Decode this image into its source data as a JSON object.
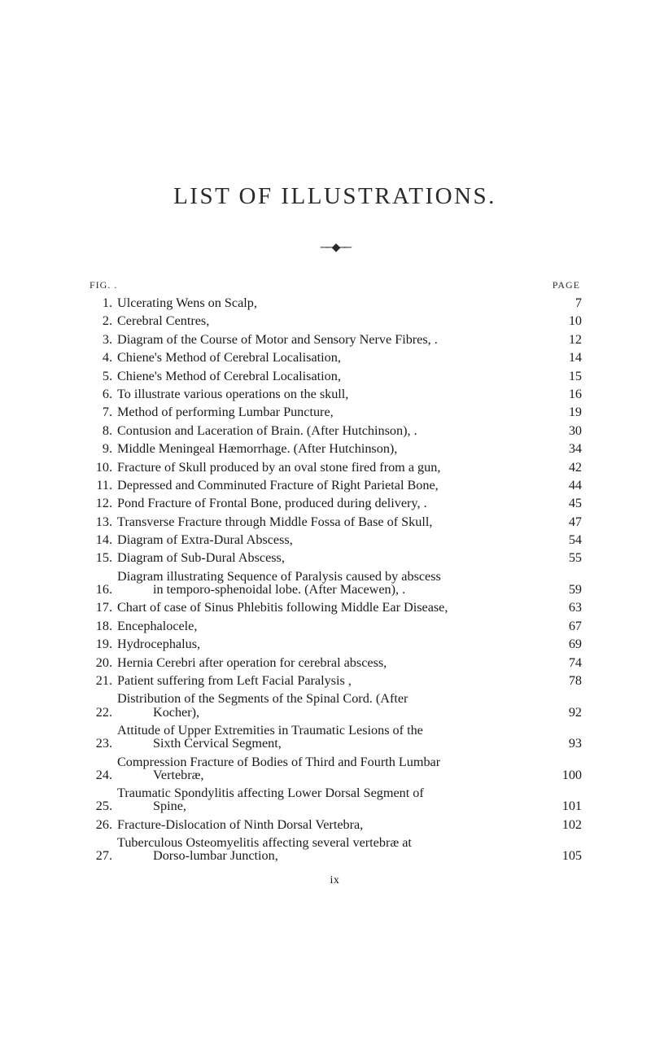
{
  "title": "LIST OF ILLUSTRATIONS.",
  "ornament": "──◆──",
  "header_left": "FIG. .",
  "header_right": "PAGE",
  "roman": "ix",
  "entries": [
    {
      "num": "1.",
      "lines": [
        "Ulcerating Wens on Scalp,"
      ],
      "page": "7"
    },
    {
      "num": "2.",
      "lines": [
        "Cerebral Centres,"
      ],
      "page": "10"
    },
    {
      "num": "3.",
      "lines": [
        "Diagram of the Course of Motor and Sensory Nerve Fibres, ."
      ],
      "page": "12"
    },
    {
      "num": "4.",
      "lines": [
        "Chiene's Method of Cerebral Localisation,"
      ],
      "page": "14"
    },
    {
      "num": "5.",
      "lines": [
        "Chiene's Method of Cerebral Localisation,"
      ],
      "page": "15"
    },
    {
      "num": "6.",
      "lines": [
        "To illustrate various operations on the skull,"
      ],
      "page": "16"
    },
    {
      "num": "7.",
      "lines": [
        "Method of performing Lumbar Puncture,"
      ],
      "page": "19"
    },
    {
      "num": "8.",
      "lines": [
        "Contusion and Laceration of Brain.   (After Hutchinson),   ."
      ],
      "page": "30"
    },
    {
      "num": "9.",
      "lines": [
        "Middle Meningeal Hæmorrhage.   (After Hutchinson),"
      ],
      "page": "34"
    },
    {
      "num": "10.",
      "lines": [
        "Fracture of Skull produced by an oval stone fired from a gun,"
      ],
      "page": "42"
    },
    {
      "num": "11.",
      "lines": [
        "Depressed and Comminuted Fracture of Right Parietal Bone,"
      ],
      "page": "44"
    },
    {
      "num": "12.",
      "lines": [
        "Pond Fracture of Frontal Bone, produced during delivery,  ."
      ],
      "page": "45"
    },
    {
      "num": "13.",
      "lines": [
        "Transverse Fracture through Middle Fossa of Base of Skull,"
      ],
      "page": "47"
    },
    {
      "num": "14.",
      "lines": [
        "Diagram of Extra-Dural Abscess,"
      ],
      "page": "54"
    },
    {
      "num": "15.",
      "lines": [
        "Diagram of Sub-Dural Abscess,"
      ],
      "page": "55"
    },
    {
      "num": "16.",
      "lines": [
        "Diagram illustrating Sequence of Paralysis caused by abscess",
        "in temporo-sphenoidal lobe.   (After Macewen),   ."
      ],
      "page": "59"
    },
    {
      "num": "17.",
      "lines": [
        "Chart of case of Sinus Phlebitis following Middle Ear Disease,"
      ],
      "page": "63"
    },
    {
      "num": "18.",
      "lines": [
        "Encephalocele,"
      ],
      "page": "67"
    },
    {
      "num": "19.",
      "lines": [
        "Hydrocephalus,"
      ],
      "page": "69"
    },
    {
      "num": "20.",
      "lines": [
        "Hernia Cerebri after operation for cerebral abscess,"
      ],
      "page": "74"
    },
    {
      "num": "21.",
      "lines": [
        "Patient suffering from Left Facial Paralysis ,"
      ],
      "page": "78"
    },
    {
      "num": "22.",
      "lines": [
        "Distribution of the Segments of the Spinal Cord.   (After",
        "Kocher),"
      ],
      "page": "92"
    },
    {
      "num": "23.",
      "lines": [
        "Attitude of Upper Extremities in Traumatic Lesions of the",
        "Sixth Cervical Segment,"
      ],
      "page": "93"
    },
    {
      "num": "24.",
      "lines": [
        "Compression Fracture of Bodies of Third and Fourth Lumbar",
        "Vertebræ,"
      ],
      "page": "100"
    },
    {
      "num": "25.",
      "lines": [
        "Traumatic Spondylitis affecting Lower Dorsal Segment of",
        "Spine,"
      ],
      "page": "101"
    },
    {
      "num": "26.",
      "lines": [
        "Fracture-Dislocation of Ninth Dorsal Vertebra,"
      ],
      "page": "102"
    },
    {
      "num": "27.",
      "lines": [
        "Tuberculous Osteomyelitis affecting several vertebræ at",
        "Dorso-lumbar Junction,"
      ],
      "page": "105"
    }
  ]
}
